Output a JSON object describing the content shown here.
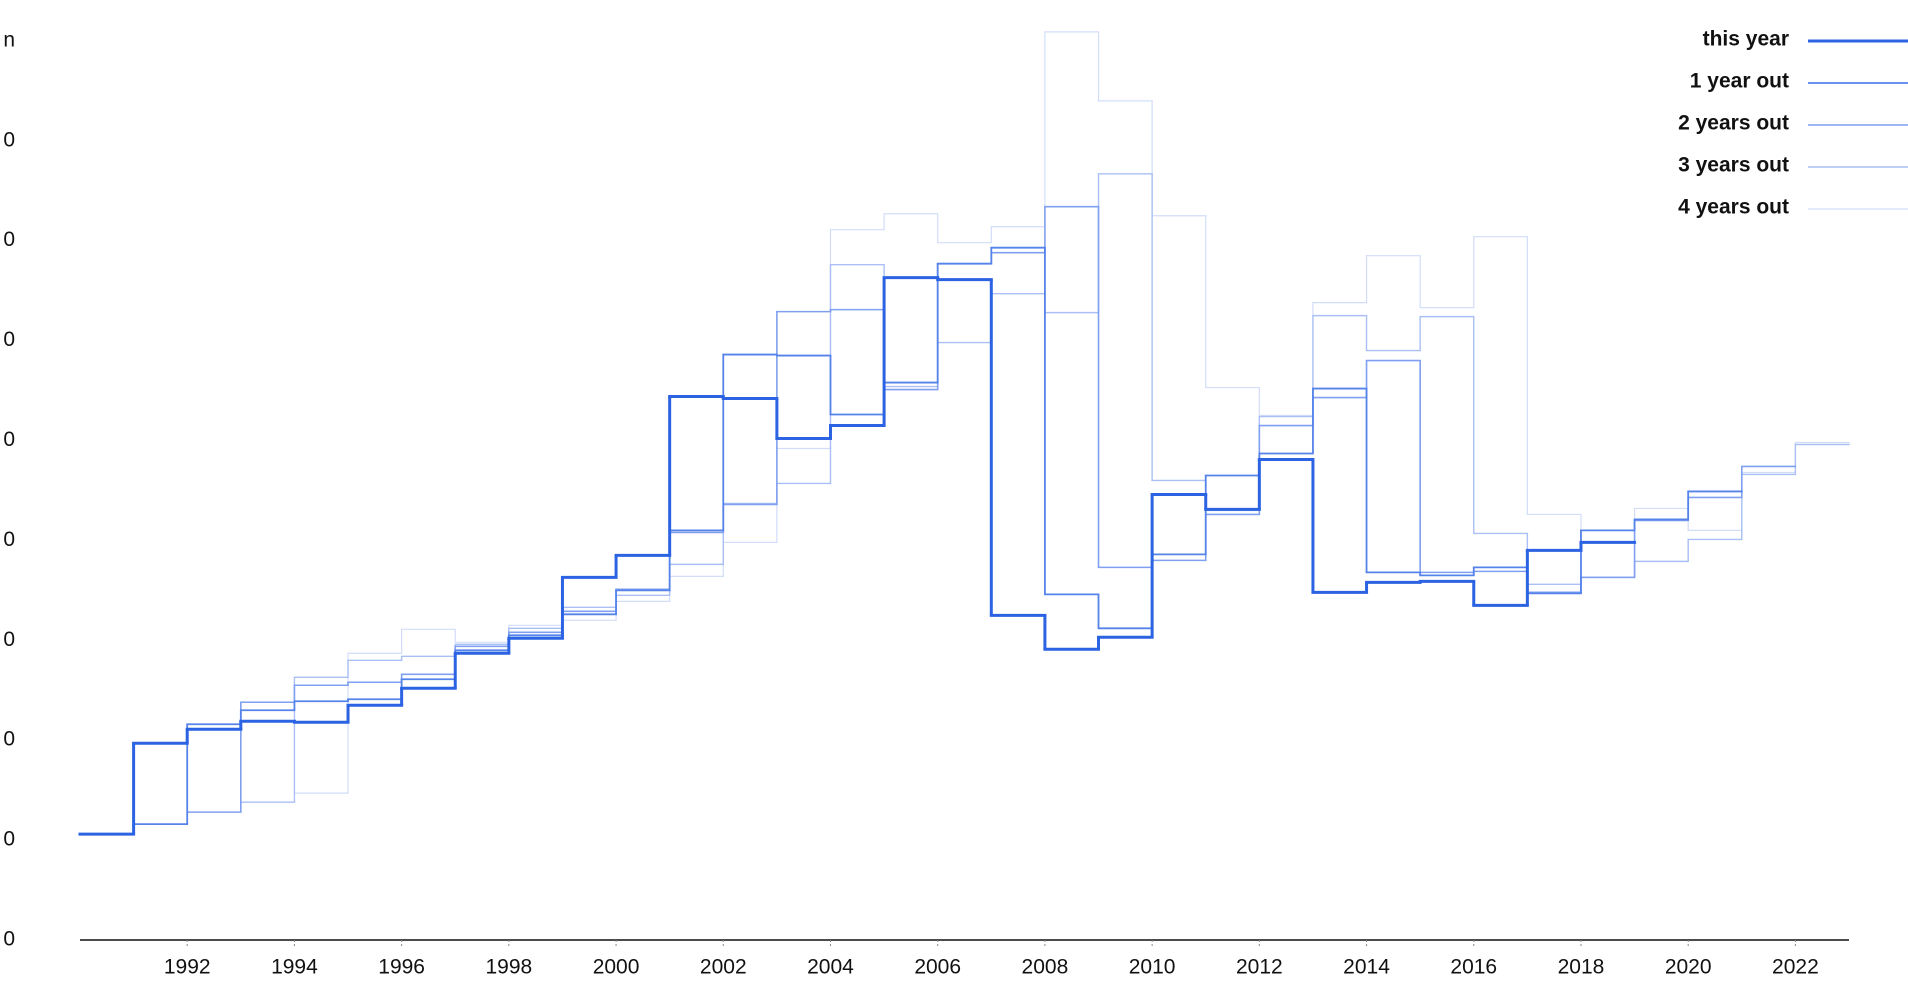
{
  "chart_data": {
    "type": "step",
    "xlim": [
      1990,
      2023
    ],
    "xticks": [
      1992,
      1994,
      1996,
      1998,
      2000,
      2002,
      2004,
      2006,
      2008,
      2010,
      2012,
      2014,
      2016,
      2018,
      2020,
      2022
    ],
    "ylim": [
      0,
      9.1
    ],
    "yticks": [
      {
        "value": 0,
        "label": "0"
      },
      {
        "value": 1,
        "label": "0"
      },
      {
        "value": 2,
        "label": "0"
      },
      {
        "value": 3,
        "label": "0"
      },
      {
        "value": 4,
        "label": "0"
      },
      {
        "value": 5,
        "label": "0"
      },
      {
        "value": 6,
        "label": "0"
      },
      {
        "value": 7,
        "label": "0"
      },
      {
        "value": 8,
        "label": "0"
      },
      {
        "value": 9,
        "label": "n"
      }
    ],
    "legend_position": "top-right",
    "series": [
      {
        "name": "this year",
        "color": "#2b63e3",
        "width": 3,
        "x": [
          1990,
          1991,
          1992,
          1993,
          1994,
          1995,
          1996,
          1997,
          1998,
          1999,
          2000,
          2001,
          2002,
          2003,
          2004,
          2005,
          2006,
          2007,
          2008,
          2009,
          2010,
          2011,
          2012,
          2013,
          2014,
          2015,
          2016,
          2017,
          2018
        ],
        "values": [
          1.06,
          1.97,
          2.11,
          2.19,
          2.18,
          2.35,
          2.52,
          2.87,
          3.02,
          3.63,
          3.85,
          5.44,
          5.42,
          5.02,
          5.15,
          6.63,
          6.61,
          3.25,
          2.91,
          3.03,
          4.46,
          4.31,
          4.81,
          3.48,
          3.58,
          3.59,
          3.35,
          3.9,
          3.98
        ]
      },
      {
        "name": "1 year out",
        "color": "#5583ea",
        "width": 1.8,
        "x": [
          1991,
          1992,
          1993,
          1994,
          1995,
          1996,
          1997,
          1998,
          1999,
          2000,
          2001,
          2002,
          2003,
          2004,
          2005,
          2006,
          2007,
          2008,
          2009,
          2010,
          2011,
          2012,
          2013,
          2014,
          2015,
          2016,
          2017,
          2018,
          2019,
          2020
        ],
        "values": [
          1.16,
          2.16,
          2.3,
          2.39,
          2.41,
          2.61,
          2.9,
          3.05,
          3.26,
          3.5,
          4.1,
          5.86,
          5.85,
          5.26,
          5.58,
          6.77,
          6.93,
          3.46,
          3.12,
          3.86,
          4.65,
          4.87,
          5.52,
          3.68,
          3.65,
          3.73,
          3.47,
          4.1,
          4.21,
          4.49
        ]
      },
      {
        "name": "2 years out",
        "color": "#7f9ff0",
        "width": 1.6,
        "x": [
          1992,
          1993,
          1994,
          1995,
          1996,
          1997,
          1998,
          1999,
          2000,
          2001,
          2002,
          2003,
          2004,
          2005,
          2006,
          2007,
          2008,
          2009,
          2010,
          2011,
          2012,
          2013,
          2014,
          2015,
          2016,
          2017,
          2018,
          2019,
          2020,
          2021
        ],
        "values": [
          1.28,
          2.38,
          2.55,
          2.58,
          2.66,
          2.94,
          3.08,
          3.29,
          3.51,
          4.08,
          4.36,
          6.29,
          6.31,
          5.51,
          6.77,
          6.88,
          7.34,
          3.73,
          3.8,
          4.26,
          5.15,
          5.43,
          5.8,
          3.68,
          3.69,
          3.48,
          3.63,
          4.2,
          4.43,
          4.74
        ]
      },
      {
        "name": "3 years out",
        "color": "#a9bff5",
        "width": 1.4,
        "x": [
          1993,
          1994,
          1995,
          1996,
          1997,
          1998,
          1999,
          2000,
          2001,
          2002,
          2003,
          2004,
          2005,
          2006,
          2007,
          2008,
          2009,
          2010,
          2011,
          2012,
          2013,
          2014,
          2015,
          2016,
          2017,
          2018,
          2019,
          2020,
          2021,
          2022
        ],
        "values": [
          1.38,
          2.63,
          2.8,
          2.84,
          2.96,
          3.12,
          3.33,
          3.45,
          3.76,
          4.37,
          4.57,
          6.76,
          5.54,
          5.98,
          6.47,
          6.28,
          7.67,
          4.6,
          4.3,
          5.24,
          6.25,
          5.9,
          6.24,
          4.07,
          3.56,
          3.63,
          3.79,
          4.01,
          4.66,
          4.96
        ]
      },
      {
        "name": "4 years out",
        "color": "#d2ddfa",
        "width": 1.2,
        "x": [
          1994,
          1995,
          1996,
          1997,
          1998,
          1999,
          2000,
          2001,
          2002,
          2003,
          2004,
          2005,
          2006,
          2007,
          2008,
          2009,
          2010,
          2011,
          2012,
          2013,
          2014,
          2015,
          2016,
          2017,
          2018,
          2019,
          2020,
          2021,
          2022
        ],
        "values": [
          1.47,
          2.87,
          3.11,
          2.98,
          3.15,
          3.2,
          3.39,
          3.64,
          3.98,
          4.92,
          7.11,
          7.27,
          6.98,
          7.14,
          9.09,
          8.4,
          7.25,
          5.53,
          5.25,
          6.38,
          6.85,
          6.33,
          7.04,
          4.26,
          3.98,
          4.32,
          4.1,
          4.68,
          4.98
        ]
      }
    ]
  }
}
